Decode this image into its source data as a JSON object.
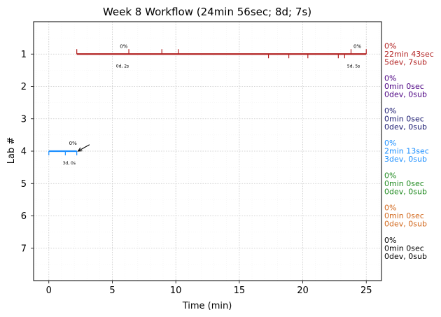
{
  "chart_data": {
    "type": "timeline",
    "title": "Week 8 Workflow (24min 56sec; 8d; 7s)",
    "xlabel": "Time (min)",
    "ylabel": "Lab #",
    "xlim": [
      -1.2,
      26.2
    ],
    "ylim": [
      8,
      0
    ],
    "x_ticks": [
      0,
      5,
      10,
      15,
      20,
      25
    ],
    "x_tick_labels": [
      "0",
      "5",
      "10",
      "15",
      "20",
      "25"
    ],
    "y_ticks": [
      1,
      2,
      3,
      4,
      5,
      6,
      7
    ],
    "y_tick_labels": [
      "1",
      "2",
      "3",
      "4",
      "5",
      "6",
      "7"
    ],
    "grid": true,
    "labs": [
      {
        "lab": 1,
        "color": "#b22222",
        "segment": [
          2.2,
          25.0
        ],
        "ticks_up": [
          2.2,
          6.3,
          8.9,
          10.2,
          23.8,
          25.0
        ],
        "ticks_down": [
          17.3,
          18.9,
          20.4,
          22.8,
          23.3
        ],
        "annotations": [
          {
            "x": 5.9,
            "text": "0%",
            "pos": "above"
          },
          {
            "x": 5.8,
            "text": "0d, 2s",
            "pos": "below"
          },
          {
            "x": 24.3,
            "text": "0%",
            "pos": "above"
          },
          {
            "x": 24.0,
            "text": "5d, 5s",
            "pos": "below"
          }
        ],
        "summary": [
          "0%",
          "22min 43sec",
          "5dev, 7sub"
        ]
      },
      {
        "lab": 2,
        "color": "#4b0082",
        "summary": [
          "0%",
          "0min 0sec",
          "0dev, 0sub"
        ]
      },
      {
        "lab": 3,
        "color": "#191970",
        "summary": [
          "0%",
          "0min 0sec",
          "0dev, 0sub"
        ]
      },
      {
        "lab": 4,
        "color": "#1e90ff",
        "segment": [
          0.0,
          2.2
        ],
        "ticks_up": [],
        "ticks_down": [
          0.0,
          1.3,
          2.2
        ],
        "annotations": [
          {
            "x": 1.9,
            "text": "0%",
            "pos": "above"
          },
          {
            "x": 1.6,
            "text": "3d, 0s",
            "pos": "below"
          }
        ],
        "arrow": {
          "from": [
            3.2,
            3.8
          ],
          "to": [
            2.3,
            4.0
          ]
        },
        "summary": [
          "0%",
          "2min 13sec",
          "3dev, 0sub"
        ]
      },
      {
        "lab": 5,
        "color": "#228b22",
        "summary": [
          "0%",
          "0min 0sec",
          "0dev, 0sub"
        ]
      },
      {
        "lab": 6,
        "color": "#d2691e",
        "summary": [
          "0%",
          "0min 0sec",
          "0dev, 0sub"
        ]
      },
      {
        "lab": 7,
        "color": "#000000",
        "summary": [
          "0%",
          "0min 0sec",
          "0dev, 0sub"
        ]
      }
    ]
  }
}
